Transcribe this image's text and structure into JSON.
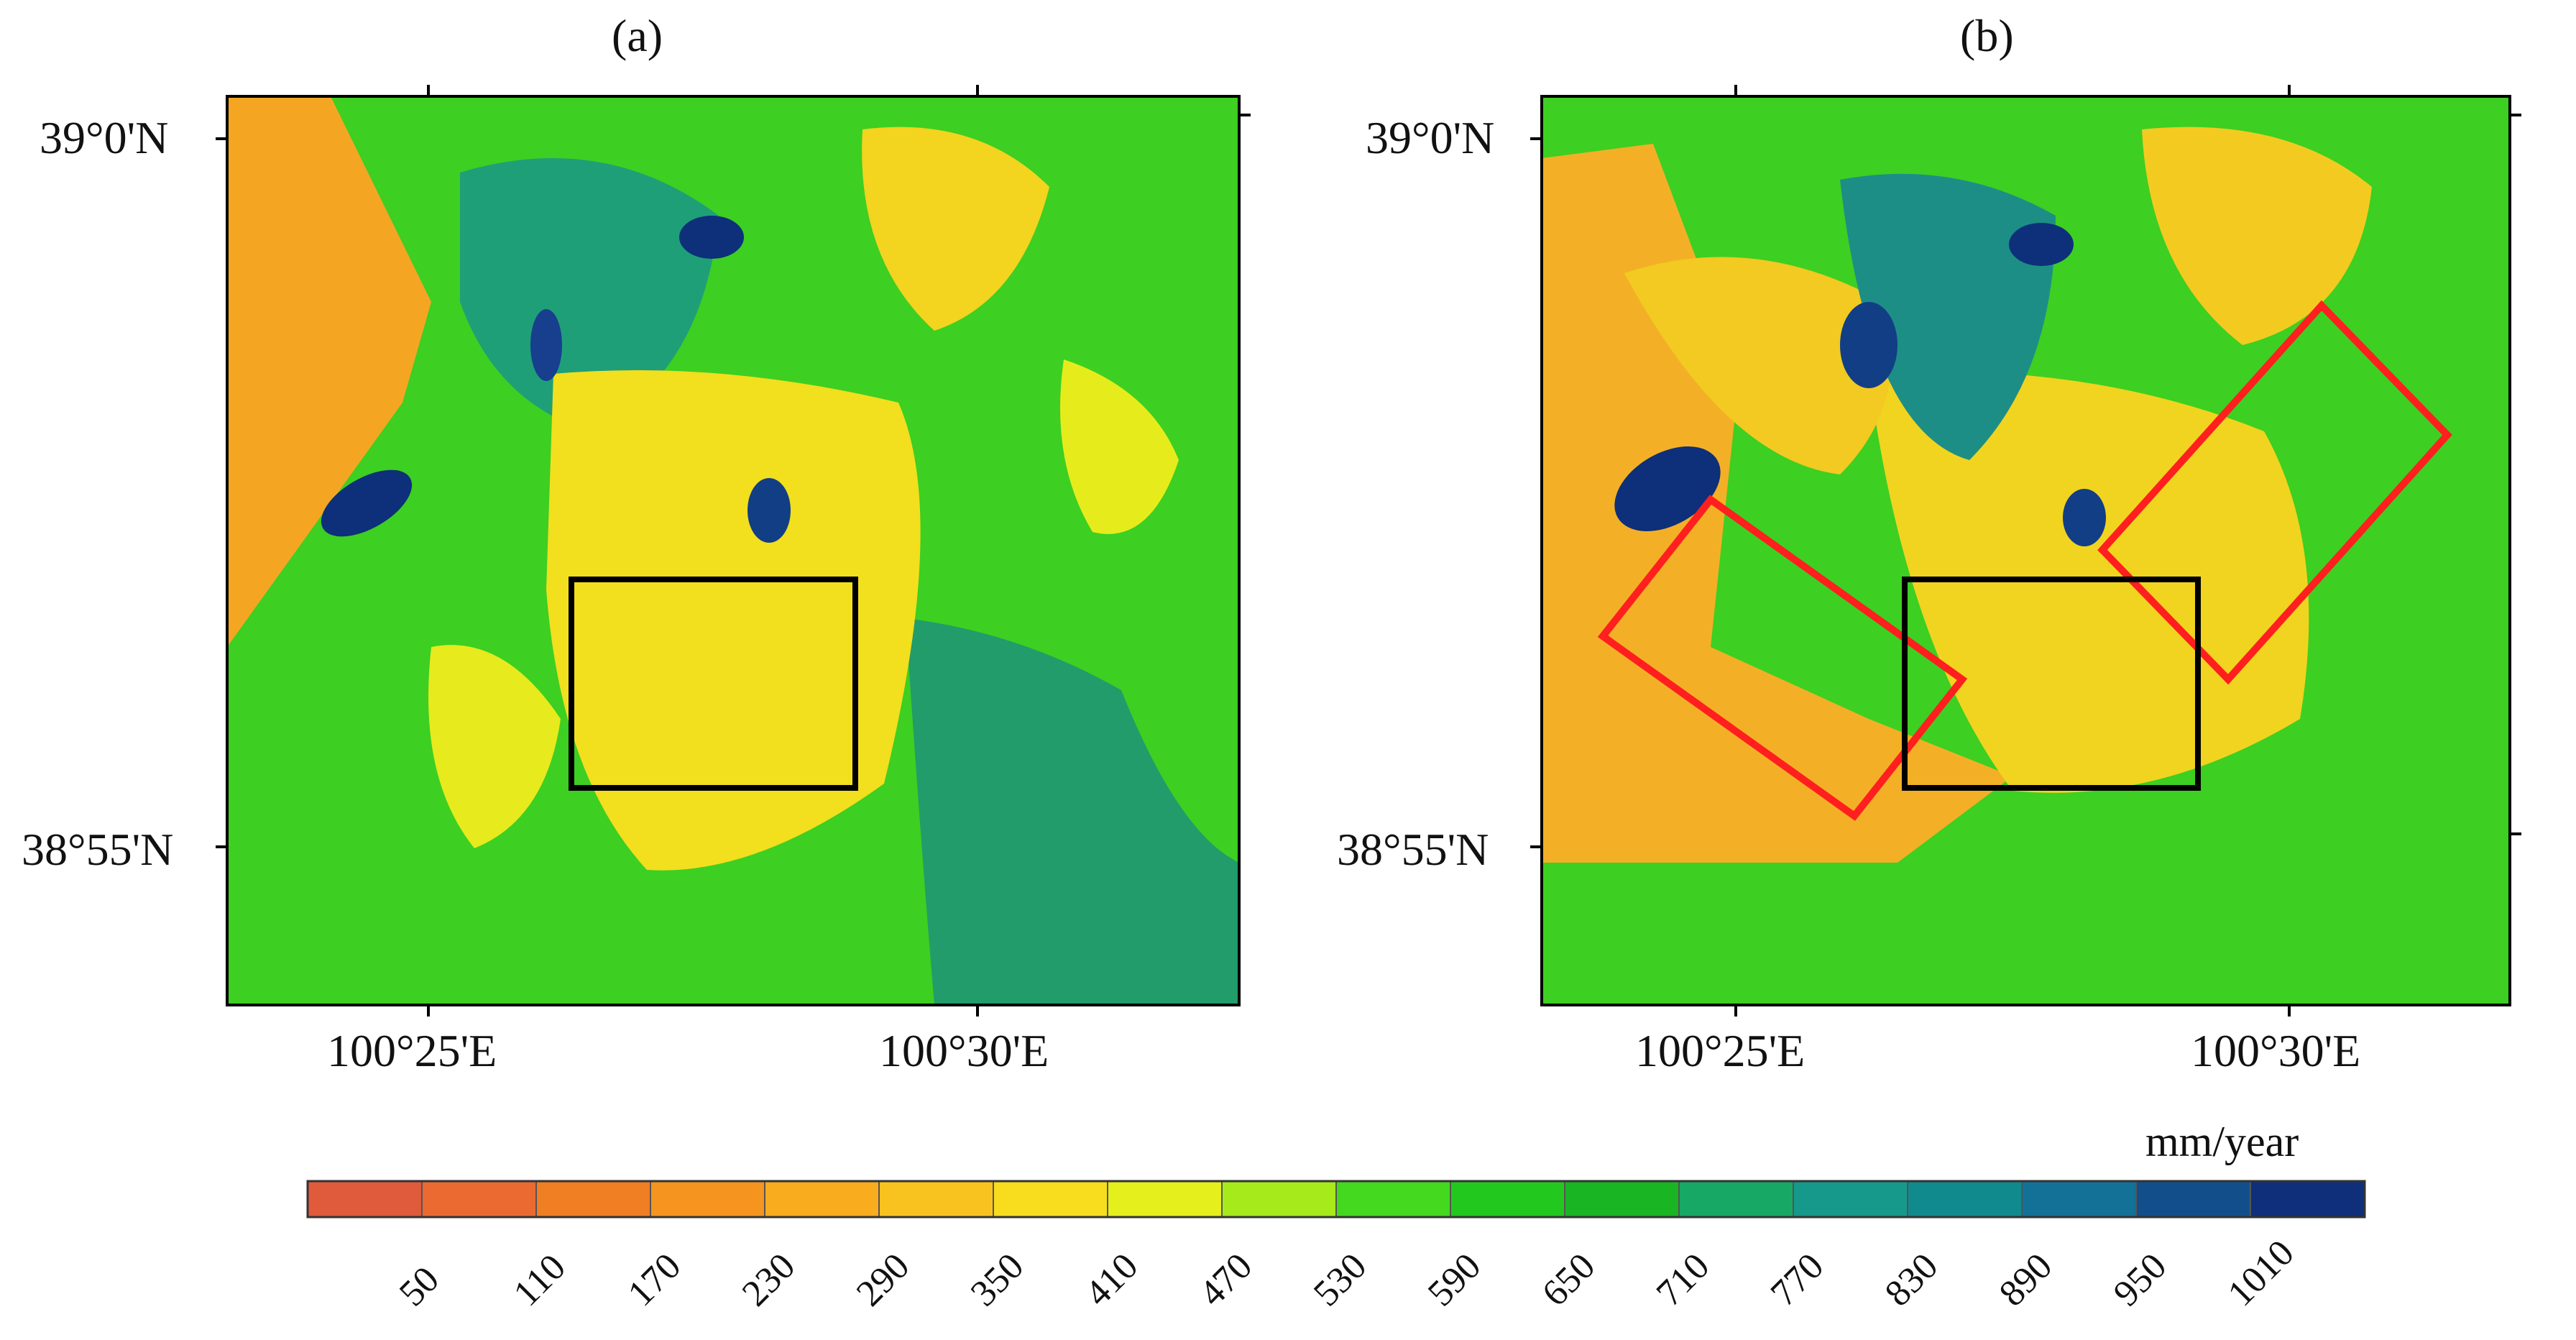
{
  "panels": [
    {
      "label": "(a)",
      "lat_labels": [
        "39°0'N",
        "38°55'N"
      ],
      "lon_labels": [
        "100°25'E",
        "100°30'E"
      ]
    },
    {
      "label": "(b)",
      "lat_labels": [
        "39°0'N",
        "38°55'N"
      ],
      "lon_labels": [
        "100°25'E",
        "100°30'E"
      ]
    }
  ],
  "colorbar": {
    "unit": "mm/year",
    "ticks": [
      "50",
      "110",
      "170",
      "230",
      "290",
      "350",
      "410",
      "470",
      "530",
      "590",
      "650",
      "710",
      "770",
      "830",
      "890",
      "950",
      "1010"
    ],
    "colors": [
      "#e05a3c",
      "#ea6a32",
      "#f07e22",
      "#f5951f",
      "#f8ac1e",
      "#f9c31f",
      "#f8dd1e",
      "#e5ef1c",
      "#a6ea1c",
      "#44d91e",
      "#23c81e",
      "#1ab523",
      "#18a866",
      "#16998a",
      "#118a8e",
      "#137096",
      "#124f8a",
      "#0f2f7a"
    ]
  },
  "legend_colors": {
    "study_area_box": "#000000",
    "highlight_boxes": "#ff1f1f"
  }
}
